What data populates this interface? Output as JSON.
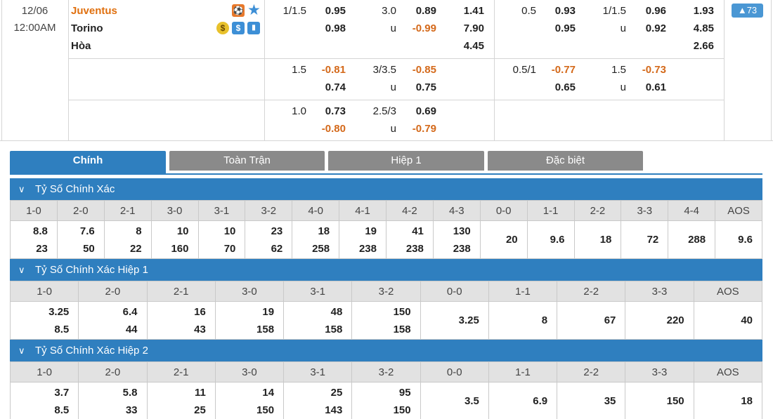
{
  "match": {
    "date": "12/06",
    "time": "12:00AM",
    "home": "Juventus",
    "away": "Torino",
    "draw": "Hòa",
    "icons": [
      "whistle-icon",
      "star-icon",
      "coin-icon",
      "dollar-icon",
      "stats-icon"
    ],
    "icon_glyphs": {
      "whistle": "⚽",
      "star": "★",
      "coin": "$",
      "dollar": "$",
      "stats": "▮"
    },
    "more_badge": "▲73"
  },
  "odds": {
    "rows": [
      {
        "ft_hdp_line": "1/1.5",
        "ft_hdp_home": "0.95",
        "ft_hdp_away": "0.98",
        "ft_ou_line": "3.0",
        "ft_ou_u": "u",
        "ft_ou_over": "0.89",
        "ft_ou_under": "-0.99",
        "ft_1x2_home": "1.41",
        "ft_1x2_away": "7.90",
        "ft_1x2_draw": "4.45",
        "h1_hdp_line": "0.5",
        "h1_hdp_home": "0.93",
        "h1_hdp_away": "0.95",
        "h1_ou_line": "1/1.5",
        "h1_ou_u": "u",
        "h1_ou_over": "0.96",
        "h1_ou_under": "0.92",
        "h1_1x2_home": "1.93",
        "h1_1x2_away": "4.85",
        "h1_1x2_draw": "2.66"
      },
      {
        "ft_hdp_line": "1.5",
        "ft_hdp_home": "-0.81",
        "ft_hdp_away": "0.74",
        "ft_ou_line": "3/3.5",
        "ft_ou_u": "u",
        "ft_ou_over": "-0.85",
        "ft_ou_under": "0.75",
        "h1_hdp_line": "0.5/1",
        "h1_hdp_home": "-0.77",
        "h1_hdp_away": "0.65",
        "h1_ou_line": "1.5",
        "h1_ou_u": "u",
        "h1_ou_over": "-0.73",
        "h1_ou_under": "0.61"
      },
      {
        "ft_hdp_line": "1.0",
        "ft_hdp_home": "0.73",
        "ft_hdp_away": "-0.80",
        "ft_ou_line": "2.5/3",
        "ft_ou_u": "u",
        "ft_ou_over": "0.69",
        "ft_ou_under": "-0.79"
      }
    ]
  },
  "tabs": [
    "Chính",
    "Toàn Trận",
    "Hiệp 1",
    "Đặc biệt"
  ],
  "sections": [
    {
      "title": "Tỷ Số Chính Xác",
      "headers": [
        "1-0",
        "2-0",
        "2-1",
        "3-0",
        "3-1",
        "3-2",
        "4-0",
        "4-1",
        "4-2",
        "4-3",
        "0-0",
        "1-1",
        "2-2",
        "3-3",
        "4-4",
        "AOS"
      ],
      "cells": [
        [
          "8.8",
          "23"
        ],
        [
          "7.6",
          "50"
        ],
        [
          "8",
          "22"
        ],
        [
          "10",
          "160"
        ],
        [
          "10",
          "70"
        ],
        [
          "23",
          "62"
        ],
        [
          "18",
          "258"
        ],
        [
          "19",
          "238"
        ],
        [
          "41",
          "238"
        ],
        [
          "130",
          "238"
        ],
        [
          "20"
        ],
        [
          "9.6"
        ],
        [
          "18"
        ],
        [
          "72"
        ],
        [
          "288"
        ],
        [
          "9.6"
        ]
      ]
    },
    {
      "title": "Tỷ Số Chính Xác Hiệp 1",
      "headers": [
        "1-0",
        "2-0",
        "2-1",
        "3-0",
        "3-1",
        "3-2",
        "0-0",
        "1-1",
        "2-2",
        "3-3",
        "AOS"
      ],
      "cells": [
        [
          "3.25",
          "8.5"
        ],
        [
          "6.4",
          "44"
        ],
        [
          "16",
          "43"
        ],
        [
          "19",
          "158"
        ],
        [
          "48",
          "158"
        ],
        [
          "150",
          "158"
        ],
        [
          "3.25"
        ],
        [
          "8"
        ],
        [
          "67"
        ],
        [
          "220"
        ],
        [
          "40"
        ]
      ]
    },
    {
      "title": "Tỷ Số Chính Xác Hiệp 2",
      "headers": [
        "1-0",
        "2-0",
        "2-1",
        "3-0",
        "3-1",
        "3-2",
        "0-0",
        "1-1",
        "2-2",
        "3-3",
        "AOS"
      ],
      "cells": [
        [
          "3.7",
          "8.5"
        ],
        [
          "5.8",
          "33"
        ],
        [
          "11",
          "25"
        ],
        [
          "14",
          "150"
        ],
        [
          "25",
          "143"
        ],
        [
          "95",
          "150"
        ],
        [
          "3.5"
        ],
        [
          "6.9"
        ],
        [
          "35"
        ],
        [
          "150"
        ],
        [
          "18"
        ]
      ]
    }
  ],
  "chevron": "∨",
  "colors": {
    "accent": "#2f7fbf",
    "negative": "#d4691a",
    "home_team": "#e0700f",
    "tab_inactive": "#8a8a8a"
  }
}
